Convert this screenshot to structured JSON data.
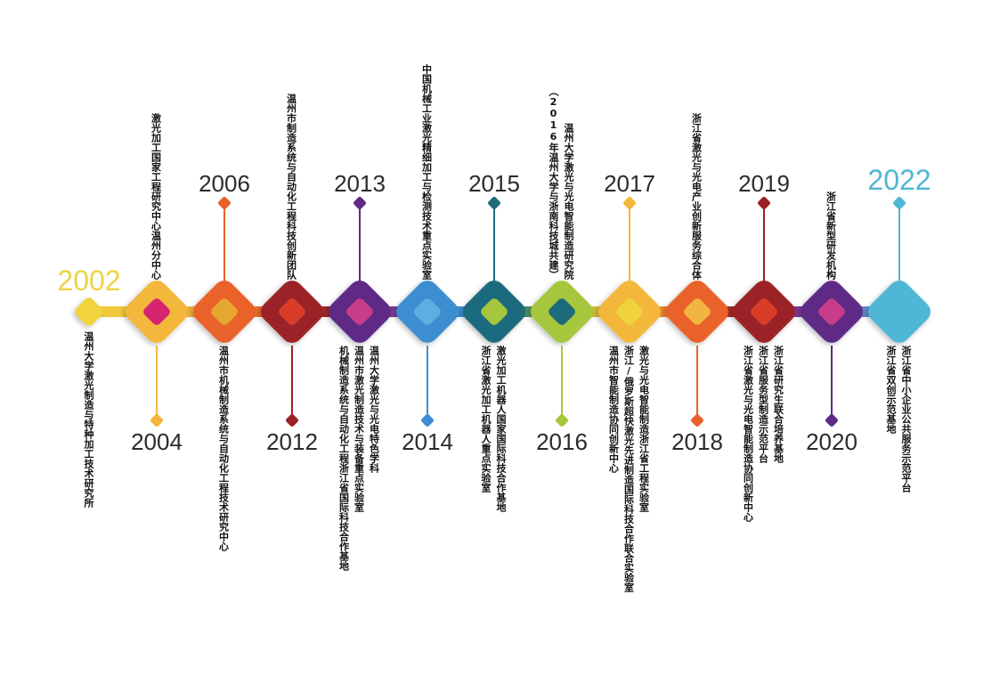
{
  "colors": {
    "bar_left": "#f0cf3a",
    "bar_right": "#5ab4e0"
  },
  "milestones": [
    {
      "year": "2002",
      "color": "#f0d33c",
      "year_color": "#ecd444",
      "labels": [
        "温州大学激光制造与特种加工技术研究所"
      ],
      "side": "down"
    },
    {
      "year": "2004",
      "color": "#f2b73a",
      "year_color": "#2b2b2b",
      "labels": [
        "激光加工国家工程研究中心温州分中心"
      ],
      "side": "down"
    },
    {
      "year": "2006",
      "color": "#e9622c",
      "year_color": "#2b2b2b",
      "labels": [
        "温州市机械制造系统与自动化工程技术研究中心"
      ],
      "side": "up"
    },
    {
      "year": "2012",
      "color": "#9b2125",
      "year_color": "#2b2b2b",
      "labels": [
        "温州市制造系统与自动化工程科技创新团队"
      ],
      "side": "down"
    },
    {
      "year": "2013",
      "color": "#5e2a86",
      "year_color": "#2b2b2b",
      "labels": [
        "温州大学激光与光电特色学科",
        "温州市激光制造技术与装备重点实验室",
        "机械制造系统与自动化工程浙江省国际科技合作基地"
      ],
      "side": "up"
    },
    {
      "year": "2014",
      "color": "#3c8ed1",
      "year_color": "#2b2b2b",
      "labels": [
        "中国机械工业激光精细加工与检测技术重点实验室"
      ],
      "side": "down"
    },
    {
      "year": "2015",
      "color": "#1f6b7e",
      "year_color": "#2b2b2b",
      "labels": [
        "激光加工机器人国家国际科技合作基地",
        "浙江省激光加工机器人重点实验室"
      ],
      "side": "up"
    },
    {
      "year": "2016",
      "color": "#a6c73d",
      "year_color": "#2b2b2b",
      "labels": [
        "温州大学激光与光电智能制造研究院",
        "（2016年温州大学与浙南科技城共建）"
      ],
      "side": "down"
    },
    {
      "year": "2017",
      "color": "#f2b73a",
      "year_color": "#2b2b2b",
      "labels": [
        "激光与光电智能制造浙江省工程实验室",
        "浙江/俄罗斯超快激光先进制造国际科技合作联合实验室",
        "温州市智能制造协同创新中心"
      ],
      "side": "up"
    },
    {
      "year": "2018",
      "color": "#e9622c",
      "year_color": "#2b2b2b",
      "labels": [
        "浙江省激光与光电产业创新服务综合体"
      ],
      "side": "down"
    },
    {
      "year": "2019",
      "color": "#9b2125",
      "year_color": "#2b2b2b",
      "labels": [
        "浙江省研究生联合培养基地",
        "浙江省服务型制造示范平台",
        "浙江省激光与光电智能制造协同创新中心"
      ],
      "side": "up"
    },
    {
      "year": "2020",
      "color": "#5e2a86",
      "year_color": "#2b2b2b",
      "labels": [
        "浙江省新型研发机构"
      ],
      "side": "down"
    },
    {
      "year": "2022",
      "color": "#4fb6d5",
      "year_color": "#4fb6d5",
      "labels": [
        "浙江省中小企业公共服务示范平台",
        "浙江省双创示范基地"
      ],
      "side": "up"
    }
  ],
  "dot_colors": [
    "#d6246f",
    "#e5a732",
    "#d93d2a",
    "#c83d8a",
    "#5cb0e0",
    "#a6c73d",
    "#1f6b7e",
    "#f0d33c",
    "#f3b541",
    "#d93d2a",
    "#c83d8a",
    "#5cb0e0"
  ]
}
